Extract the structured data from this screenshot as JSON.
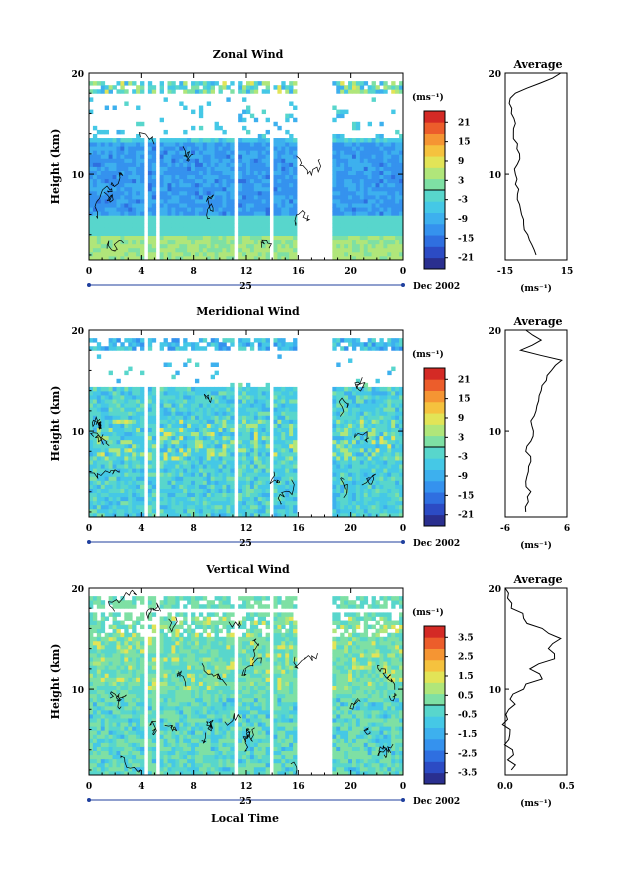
{
  "figure": {
    "x_axis_title": "Local Time",
    "date_label": "Dec 2002",
    "day_label": "25"
  },
  "colors": {
    "scale": [
      "#2a2f8f",
      "#2c4bc4",
      "#2f6fe0",
      "#3592ee",
      "#3db0ee",
      "#45c8e6",
      "#58d6cc",
      "#7ee0a4",
      "#b0e67a",
      "#e2e457",
      "#f5c23e",
      "#f59533",
      "#ec5d2b",
      "#d42a25"
    ]
  },
  "chart_data": [
    {
      "type": "heatmap",
      "title": "Zonal Wind",
      "ylabel": "Height (km)",
      "xlim": [
        0,
        24
      ],
      "ylim": [
        1.5,
        20
      ],
      "x_ticks": [
        "0",
        "4",
        "8",
        "12",
        "16",
        "20",
        "0"
      ],
      "y_ticks": [
        "10",
        "20"
      ],
      "data_gaps_hours": [
        [
          4.2,
          4.5
        ],
        [
          5.0,
          5.3
        ],
        [
          11.1,
          11.5
        ],
        [
          13.7,
          14.1
        ],
        [
          16.0,
          18.6
        ]
      ],
      "colorbar": {
        "unit": "(ms⁻¹)",
        "ticks": [
          "21",
          "15",
          "9",
          "3",
          "-3",
          "-9",
          "-15",
          "-21"
        ],
        "range": [
          -24,
          24
        ]
      },
      "average_profile": {
        "title": "Average",
        "xlabel": "(ms⁻¹)",
        "xlim": [
          -15,
          15
        ],
        "x_ticks": [
          "-15",
          "15"
        ],
        "y_ticks": [
          "10",
          "20"
        ],
        "height_km": [
          2,
          3,
          4,
          5,
          6,
          7,
          8,
          9,
          10,
          11,
          12,
          13,
          14,
          15,
          16,
          17,
          18,
          19,
          20
        ],
        "values": [
          0,
          -2,
          -4,
          -6,
          -7,
          -8,
          -9,
          -10,
          -10,
          -9,
          -8,
          -9,
          -11,
          -10,
          -12,
          -13,
          -10,
          2,
          12
        ]
      }
    },
    {
      "type": "heatmap",
      "title": "Meridional Wind",
      "ylabel": "Height (km)",
      "xlim": [
        0,
        24
      ],
      "ylim": [
        1.5,
        20
      ],
      "x_ticks": [
        "0",
        "4",
        "8",
        "12",
        "16",
        "20",
        "0"
      ],
      "y_ticks": [
        "10",
        "20"
      ],
      "data_gaps_hours": [
        [
          4.2,
          4.5
        ],
        [
          5.0,
          5.3
        ],
        [
          11.1,
          11.5
        ],
        [
          13.7,
          14.1
        ],
        [
          16.0,
          18.6
        ]
      ],
      "colorbar": {
        "unit": "(ms⁻¹)",
        "ticks": [
          "21",
          "15",
          "9",
          "3",
          "-3",
          "-9",
          "-15",
          "-21"
        ],
        "range": [
          -24,
          24
        ]
      },
      "average_profile": {
        "title": "Average",
        "xlabel": "(ms⁻¹)",
        "xlim": [
          -6,
          6
        ],
        "x_ticks": [
          "-6",
          "6"
        ],
        "y_ticks": [
          "10",
          "20"
        ],
        "height_km": [
          2,
          3,
          4,
          5,
          6,
          7,
          8,
          9,
          10,
          11,
          12,
          13,
          14,
          15,
          16,
          17,
          18,
          19,
          20
        ],
        "values": [
          -2,
          -1.5,
          -1,
          -2,
          -1.5,
          -1,
          -2,
          -1,
          -0.5,
          -1,
          0,
          0.5,
          1,
          2,
          3,
          5,
          -3,
          1,
          -2
        ]
      }
    },
    {
      "type": "heatmap",
      "title": "Vertical Wind",
      "ylabel": "Height (km)",
      "xlim": [
        0,
        24
      ],
      "ylim": [
        1.5,
        20
      ],
      "x_ticks": [
        "0",
        "4",
        "8",
        "12",
        "16",
        "20",
        "0"
      ],
      "y_ticks": [
        "10",
        "20"
      ],
      "data_gaps_hours": [
        [
          4.2,
          4.5
        ],
        [
          5.0,
          5.3
        ],
        [
          11.1,
          11.5
        ],
        [
          13.7,
          14.1
        ],
        [
          16.0,
          18.6
        ]
      ],
      "colorbar": {
        "unit": "(ms⁻¹)",
        "ticks": [
          "3.5",
          "2.5",
          "1.5",
          "0.5",
          "-0.5",
          "-1.5",
          "-2.5",
          "-3.5"
        ],
        "range": [
          -4,
          4
        ]
      },
      "average_profile": {
        "title": "Average",
        "xlabel": "(ms⁻¹)",
        "xlim": [
          0,
          0.5
        ],
        "x_ticks": [
          "0.0",
          "0.5"
        ],
        "y_ticks": [
          "10",
          "20"
        ],
        "height_km": [
          2,
          3,
          4,
          5,
          6,
          7,
          8,
          9,
          10,
          11,
          12,
          13,
          14,
          15,
          16,
          17,
          18,
          19,
          20
        ],
        "values": [
          0.05,
          0.02,
          0.06,
          0.03,
          0.04,
          0.02,
          0.03,
          0.04,
          0.15,
          0.3,
          0.2,
          0.4,
          0.35,
          0.45,
          0.3,
          0.15,
          0.05,
          0.02,
          0.0
        ]
      }
    }
  ]
}
